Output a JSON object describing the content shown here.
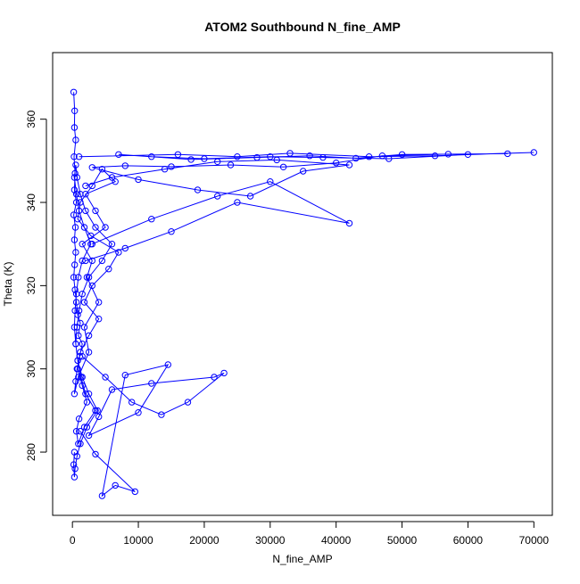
{
  "chart_data": {
    "type": "line",
    "title": "ATOM2 Southbound N_fine_AMP",
    "xlabel": "N_fine_AMP",
    "ylabel": "Theta (K)",
    "xlim": [
      -3000,
      72800
    ],
    "ylim": [
      264.8,
      376
    ],
    "x_ticks": [
      0,
      10000,
      20000,
      30000,
      40000,
      50000,
      60000,
      70000
    ],
    "x_tick_labels": [
      "0",
      "10000",
      "20000",
      "30000",
      "40000",
      "50000",
      "60000",
      "70000"
    ],
    "y_ticks": [
      280,
      300,
      320,
      340,
      360
    ],
    "y_tick_labels": [
      "280",
      "300",
      "320",
      "340",
      "360"
    ],
    "grid": false,
    "legend": "none",
    "marker": "open-circle",
    "color": "#0000ff",
    "series": [
      {
        "x": [
          200,
          350,
          300,
          500,
          250,
          400,
          300,
          600,
          200,
          450,
          300,
          500,
          350,
          200,
          400,
          600,
          800,
          1200,
          900,
          1500,
          1100,
          700,
          500,
          300,
          900,
          2500,
          1800,
          4000,
          2200,
          3000,
          1500,
          5000,
          3500,
          2000,
          6500,
          4500,
          3000,
          1200,
          800,
          2800,
          7000,
          5500,
          3000,
          1800,
          4000,
          2500,
          1200,
          800,
          1500,
          2200,
          1000,
          600,
          900,
          1800,
          3500,
          2000,
          1300,
          800,
          500,
          700,
          1000,
          1500,
          2500,
          4500,
          6000,
          3500,
          2000,
          1200,
          700,
          500,
          300,
          600,
          1000,
          1800,
          2800,
          1500,
          900,
          600,
          400,
          300,
          500,
          800,
          1500,
          2500,
          3800,
          2200,
          1200,
          700,
          400,
          300,
          200,
          300
        ],
        "y": [
          366.5,
          362,
          358,
          355,
          351,
          347,
          343,
          340,
          337,
          334,
          331,
          328,
          325,
          322,
          319,
          316,
          313,
          311,
          308,
          306,
          303,
          300,
          297,
          294,
          298,
          304,
          310,
          316,
          322,
          326,
          330,
          334,
          338,
          342,
          345,
          348,
          344,
          340,
          336,
          332,
          328,
          324,
          320,
          316,
          312,
          308,
          304,
          300,
          296,
          292,
          288,
          285,
          282,
          286,
          290,
          294,
          298,
          302,
          306,
          310,
          314,
          318,
          322,
          326,
          330,
          334,
          338,
          342,
          346,
          349,
          346,
          342,
          338,
          334,
          330,
          326,
          322,
          318,
          314,
          310,
          306,
          302,
          298,
          294,
          290,
          286,
          282,
          279,
          276,
          274,
          277,
          280
        ]
      },
      {
        "x": [
          1000,
          16000,
          25000,
          33000,
          45000,
          55000,
          70000,
          60000,
          48000,
          38000,
          30000,
          20000,
          12000,
          7000,
          18000,
          28000,
          36000,
          43000,
          50000,
          66000,
          57000,
          47000,
          40000,
          32000,
          24000,
          15000,
          8000,
          3000,
          10000,
          19000,
          27000,
          35000,
          42000,
          31000,
          22000,
          14000,
          6000,
          2000
        ],
        "y": [
          351,
          351.5,
          351,
          351.8,
          351,
          351.2,
          352,
          351.5,
          350.5,
          350.8,
          351,
          350.5,
          351,
          351.5,
          350.3,
          350.8,
          351.2,
          350.6,
          351.5,
          351.7,
          351.6,
          351.2,
          349.5,
          348.5,
          349,
          348.6,
          348.8,
          348.4,
          345.5,
          343,
          341.5,
          347.5,
          349,
          350.2,
          349.8,
          348,
          346,
          344
        ]
      },
      {
        "x": [
          3000,
          12000,
          22000,
          30000,
          42000,
          25000,
          15000,
          8000,
          2000
        ],
        "y": [
          330,
          336,
          341.5,
          345,
          335,
          340,
          333,
          329,
          326
        ]
      },
      {
        "x": [
          1500,
          5000,
          9000,
          13500,
          17500,
          23000,
          21500,
          12000,
          6000,
          4000,
          2500,
          10000,
          14500,
          8000,
          4500,
          6500,
          9500,
          3500,
          1200
        ],
        "y": [
          303,
          298,
          292,
          289,
          292,
          299,
          298,
          296.5,
          295,
          288.5,
          284,
          289.5,
          301,
          298.5,
          269.5,
          272,
          270.5,
          279.5,
          285
        ]
      }
    ]
  }
}
